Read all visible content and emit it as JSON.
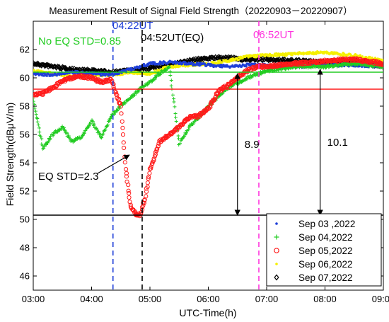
{
  "chart_data": {
    "type": "scatter",
    "title": "Measurement Result of Signal Field Strength（20220903－20220907）",
    "xlabel": "UTC-Time(h)",
    "ylabel": "Field Strength(dBμV/m)",
    "xlim": [
      "03:00",
      "09:00"
    ],
    "ylim": [
      45,
      64
    ],
    "x_ticks": [
      "03:00",
      "04:00",
      "05:00",
      "06:00",
      "07:00",
      "08:00",
      "09:00"
    ],
    "y_ticks": [
      46,
      48,
      50,
      52,
      54,
      56,
      58,
      60,
      62
    ],
    "grid": false,
    "legend_position": "bottom-right",
    "series": [
      {
        "name": "Sep 03 ,2022",
        "color": "#1f3fd8",
        "marker": "dot",
        "x": [
          "03:00",
          "03:20",
          "03:40",
          "04:00",
          "04:20",
          "04:40",
          "05:00",
          "05:20",
          "05:40",
          "06:00",
          "06:20",
          "06:40",
          "07:00",
          "07:30",
          "08:00",
          "08:30",
          "09:00"
        ],
        "y": [
          60.3,
          60.2,
          60.4,
          60.3,
          60.2,
          60.6,
          61.0,
          61.1,
          61.0,
          60.9,
          60.8,
          60.9,
          60.9,
          60.8,
          60.9,
          60.9,
          60.8
        ]
      },
      {
        "name": "Sep 04,2022",
        "color": "#22cc22",
        "marker": "plus",
        "x": [
          "03:00",
          "03:10",
          "03:20",
          "03:30",
          "03:40",
          "03:50",
          "04:00",
          "04:10",
          "04:20",
          "04:30",
          "04:40",
          "04:50",
          "05:00",
          "05:10",
          "05:20",
          "05:30",
          "05:40",
          "05:50",
          "06:00",
          "06:20",
          "06:40",
          "07:00",
          "07:30",
          "08:00",
          "08:30",
          "09:00"
        ],
        "y": [
          58.5,
          55.0,
          56.0,
          56.5,
          55.5,
          55.8,
          57.0,
          55.8,
          57.3,
          58.0,
          58.6,
          59.2,
          59.7,
          60.3,
          60.8,
          55.3,
          56.5,
          57.2,
          58.0,
          59.3,
          60.0,
          60.5,
          60.8,
          60.8,
          61.0,
          60.8
        ]
      },
      {
        "name": "Sep 05,2022",
        "color": "#ff1a1a",
        "marker": "circle",
        "x": [
          "03:00",
          "03:10",
          "03:20",
          "03:30",
          "03:40",
          "03:50",
          "04:00",
          "04:10",
          "04:20",
          "04:30",
          "04:35",
          "04:40",
          "04:45",
          "04:50",
          "04:55",
          "05:00",
          "05:10",
          "05:20",
          "05:30",
          "05:40",
          "05:50",
          "06:00",
          "06:10",
          "06:20",
          "06:30",
          "06:40",
          "06:50",
          "07:00",
          "07:30",
          "08:00",
          "08:30",
          "09:00"
        ],
        "y": [
          58.8,
          58.9,
          59.3,
          59.8,
          60.0,
          60.1,
          60.0,
          59.7,
          59.9,
          58.0,
          53.5,
          51.0,
          50.4,
          50.3,
          51.5,
          53.5,
          55.5,
          56.0,
          56.5,
          57.2,
          57.3,
          57.8,
          59.0,
          59.5,
          60.0,
          60.5,
          60.8,
          60.8,
          61.0,
          61.2,
          61.3,
          61.0
        ]
      },
      {
        "name": "Sep 06,2022",
        "color": "#f5f000",
        "marker": "dot",
        "x": [
          "03:00",
          "03:20",
          "03:40",
          "04:00",
          "04:20",
          "04:40",
          "05:00",
          "05:20",
          "05:40",
          "06:00",
          "06:20",
          "06:40",
          "07:00",
          "07:30",
          "08:00",
          "08:30",
          "09:00"
        ],
        "y": [
          60.5,
          60.3,
          60.1,
          60.2,
          60.2,
          60.4,
          60.3,
          60.8,
          60.9,
          61.0,
          61.2,
          61.5,
          61.6,
          61.7,
          61.8,
          61.6,
          61.2
        ]
      },
      {
        "name": "Sep 07,2022",
        "color": "#000000",
        "marker": "diamond",
        "x": [
          "03:00",
          "03:20",
          "03:40",
          "04:00",
          "04:20",
          "04:40",
          "05:00",
          "05:20",
          "05:40",
          "06:00",
          "06:20",
          "06:40",
          "07:00",
          "07:30",
          "08:00",
          "08:30",
          "09:00"
        ],
        "y": [
          61.0,
          60.8,
          60.6,
          60.5,
          60.4,
          60.5,
          60.7,
          60.9,
          61.2,
          61.4,
          61.4,
          61.3,
          61.3,
          61.2,
          61.1,
          61.2,
          60.8
        ]
      }
    ],
    "reference_lines": [
      {
        "orientation": "horizontal",
        "y": 60.4,
        "color": "#22cc22"
      },
      {
        "orientation": "horizontal",
        "y": 59.2,
        "color": "#ff1a1a"
      },
      {
        "orientation": "horizontal",
        "y": 50.3,
        "color": "#000000"
      },
      {
        "orientation": "vertical",
        "x": "04:22",
        "color": "#1f3fd8",
        "style": "dashed"
      },
      {
        "orientation": "vertical",
        "x": "04:52",
        "color": "#000000",
        "style": "dashed"
      },
      {
        "orientation": "vertical",
        "x": "06:52",
        "color": "#ff33dd",
        "style": "dashed"
      }
    ],
    "annotations": {
      "no_eq_std": {
        "text": "No EQ STD=0.85",
        "color": "#22cc22"
      },
      "vline_blue": {
        "text": "04:22UT",
        "color": "#1f3fd8"
      },
      "vline_black": {
        "text": "04:52UT(EQ)",
        "color": "#000000"
      },
      "vline_pink": {
        "text": "06:52UT",
        "color": "#ff33dd"
      },
      "eq_std": {
        "text": "EQ STD=2.3",
        "color": "#000000"
      },
      "drop_1": {
        "text": "8.9",
        "x": "06:30",
        "y_from": 60.3,
        "y_to": 50.3
      },
      "drop_2": {
        "text": "10.1",
        "x": "07:55",
        "y_from": 60.6,
        "y_to": 50.3
      }
    }
  }
}
